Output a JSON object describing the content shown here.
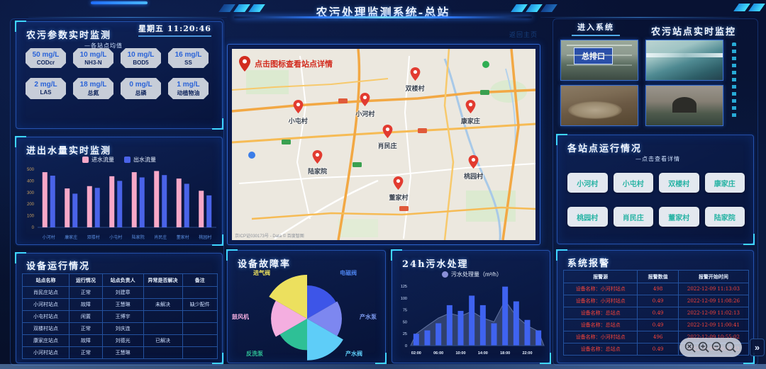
{
  "header": {
    "title": "农污处理监测系统-总站",
    "back_link": "返回主页"
  },
  "params_panel": {
    "title": "农污参数实时监测",
    "subtitle": "—各站点均值",
    "datetime": "星期五 11:20:46",
    "metrics": [
      {
        "value": "50 mg/L",
        "label": "CODcr"
      },
      {
        "value": "10 mg/L",
        "label": "NH3-N"
      },
      {
        "value": "10 mg/L",
        "label": "BOD5"
      },
      {
        "value": "16 mg/L",
        "label": "SS"
      },
      {
        "value": "2 mg/L",
        "label": "LAS"
      },
      {
        "value": "18 mg/L",
        "label": "总氮"
      },
      {
        "value": "0 mg/L",
        "label": "总磷"
      },
      {
        "value": "1 mg/L",
        "label": "动植物油"
      }
    ]
  },
  "flow_panel": {
    "title": "进出水量实时监测"
  },
  "device_panel": {
    "title": "设备运行情况",
    "headers": [
      "站点名称",
      "运行情况",
      "站点负责人",
      "异常是否解决",
      "备注"
    ],
    "rows": [
      [
        "肖民庄站点",
        "正常",
        "刘建章",
        "",
        ""
      ],
      [
        "小河村站点",
        "故障",
        "王慧琳",
        "未解决",
        "缺少配件"
      ],
      [
        "小屯村站点",
        "闲置",
        "王博宇",
        "",
        ""
      ],
      [
        "双楼村站点",
        "正常",
        "刘庆连",
        "",
        ""
      ],
      [
        "康家庄站点",
        "故障",
        "刘德光",
        "已解决",
        ""
      ],
      [
        "小河村站点",
        "正常",
        "王慧琳",
        "",
        ""
      ]
    ]
  },
  "map_panel": {
    "hint": "点击图标查看站点详情",
    "attribution": "京ICP证030173号 - Data © 百度智图",
    "markers": [
      {
        "name": "双楼村",
        "x": 60.3,
        "y": 22.8
      },
      {
        "name": "小河村",
        "x": 43.9,
        "y": 36.2
      },
      {
        "name": "小屯村",
        "x": 21.8,
        "y": 39.9
      },
      {
        "name": "康家庄",
        "x": 78.6,
        "y": 39.9
      },
      {
        "name": "肖民庄",
        "x": 51.2,
        "y": 53.0
      },
      {
        "name": "陆家院",
        "x": 28.2,
        "y": 66.4
      },
      {
        "name": "董家村",
        "x": 54.9,
        "y": 79.9
      },
      {
        "name": "桃园村",
        "x": 79.6,
        "y": 69.0
      }
    ]
  },
  "fault_panel": {
    "title": "设备故障率"
  },
  "sewage_panel": {
    "title": "24h污水处理"
  },
  "monitor_panel": {
    "enter_label": "进入系统",
    "title": "农污站点实时监控",
    "cam_label": "总排口"
  },
  "stations_panel": {
    "title": "各站点运行情况",
    "subtitle": "—点击查看详情",
    "stations": [
      "小河村",
      "小屯村",
      "双楼村",
      "康家庄",
      "桃园村",
      "肖民庄",
      "董家村",
      "陆家院"
    ]
  },
  "alarm_panel": {
    "title": "系统报警",
    "headers": [
      "报警源",
      "报警数值",
      "报警开始时间"
    ],
    "rows": [
      [
        "设备名称：小河村站点",
        "498",
        "2022-12-09 11:13:03"
      ],
      [
        "设备名称：小河村站点",
        "0.49",
        "2022-12-09 11:08:26"
      ],
      [
        "设备名称：总站点",
        "0.49",
        "2022-12-09 11:02:13"
      ],
      [
        "设备名称：总站点",
        "0.49",
        "2022-12-09 11:00:41"
      ],
      [
        "设备名称：小河村站点",
        "496",
        "2022-12-09 10:55:02"
      ],
      [
        "设备名称：总站点",
        "0.49",
        "2022-12-09 10:54:32"
      ]
    ]
  },
  "overlay": {
    "expand_glyph": "»"
  },
  "chart_data": [
    {
      "id": "flow",
      "type": "bar",
      "title": "进出水量实时监测",
      "categories": [
        "小河村",
        "康家庄",
        "双楼村",
        "小屯村",
        "陆家院",
        "肖民庄",
        "董家村",
        "桃园村"
      ],
      "series": [
        {
          "name": "进水流量",
          "color": "#f8a8c8",
          "values": [
            475,
            335,
            355,
            440,
            475,
            485,
            420,
            315
          ]
        },
        {
          "name": "出水流量",
          "color": "#4a63e8",
          "values": [
            445,
            290,
            340,
            400,
            430,
            450,
            375,
            275
          ]
        }
      ],
      "ylim": [
        0,
        500
      ],
      "yticks": [
        0,
        100,
        200,
        300,
        400,
        500
      ],
      "legend_position": "top",
      "grid": false
    },
    {
      "id": "fault",
      "type": "pie",
      "subtype": "nightingale-rose",
      "title": "设备故障率",
      "slices": [
        {
          "label": "电磁阀",
          "value": 72,
          "color": "#3d55e8",
          "label_color": "#4a7fe8"
        },
        {
          "label": "产水泵",
          "value": 75,
          "color": "#7d87f0",
          "label_color": "#7d9bf0"
        },
        {
          "label": "产水阀",
          "value": 90,
          "color": "#5ecdf8",
          "label_color": "#5ecdf8"
        },
        {
          "label": "反洗泵",
          "value": 68,
          "color": "#2ec096",
          "label_color": "#2ec096"
        },
        {
          "label": "鼓风机",
          "value": 78,
          "color": "#f4aee0",
          "label_color": "#f4aee0"
        },
        {
          "label": "进气阀",
          "value": 95,
          "color": "#ece05e",
          "label_color": "#ece05e"
        }
      ],
      "angle_per_slice_deg": 60,
      "start_angle_deg": -90
    },
    {
      "id": "sewage",
      "type": "bar",
      "overlay": "area",
      "title": "24h污水处理",
      "legend": "污水处理量（m³/h）",
      "legend_color": "#8a8fd8",
      "x": [
        "02:00",
        "04:00",
        "06:00",
        "08:00",
        "10:00",
        "12:00",
        "14:00",
        "16:00",
        "18:00",
        "20:00",
        "22:00",
        "24:00"
      ],
      "bar_values": [
        25,
        32,
        47,
        85,
        73,
        105,
        85,
        47,
        124,
        93,
        54,
        32
      ],
      "area_values": [
        25,
        42,
        58,
        68,
        62,
        72,
        58,
        50,
        95,
        62,
        42,
        30
      ],
      "bar_color": "#3f63f0",
      "ylim": [
        0,
        125
      ],
      "yticks": [
        0,
        25,
        50,
        75,
        100,
        125
      ],
      "xticks_shown": [
        "02:00",
        "06:00",
        "10:00",
        "14:00",
        "18:00",
        "22:00"
      ],
      "grid": false
    }
  ]
}
